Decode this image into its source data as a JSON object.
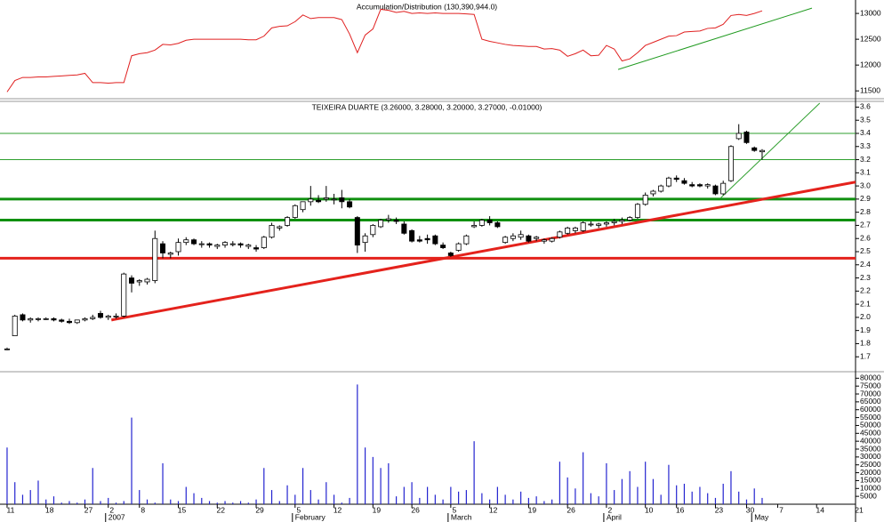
{
  "chart_data": [
    {
      "type": "line",
      "title": "Accumulation/Distribution (130,390,944.0)",
      "color": "#e02020",
      "ylim": [
        11400,
        13260
      ],
      "yticks": [
        11500,
        12000,
        12500,
        13000
      ],
      "values": [
        11480,
        11700,
        11760,
        11760,
        11770,
        11770,
        11780,
        11790,
        11800,
        11810,
        11840,
        11660,
        11660,
        11650,
        11660,
        11660,
        12180,
        12220,
        12240,
        12290,
        12400,
        12390,
        12420,
        12480,
        12500,
        12500,
        12500,
        12500,
        12500,
        12500,
        12500,
        12490,
        12490,
        12560,
        12720,
        12750,
        12760,
        12840,
        12970,
        12900,
        12920,
        12920,
        12920,
        12880,
        12600,
        12240,
        12580,
        12700,
        13080,
        13060,
        13020,
        13040,
        13000,
        13010,
        13000,
        13010,
        13000,
        13000,
        13000,
        12990,
        12980,
        12500,
        12460,
        12430,
        12400,
        12380,
        12370,
        12360,
        12360,
        12310,
        12320,
        12290,
        12170,
        12220,
        12290,
        12180,
        12190,
        12380,
        12310,
        12080,
        12120,
        12240,
        12380,
        12440,
        12500,
        12560,
        12570,
        12640,
        12650,
        12660,
        12710,
        12720,
        12790,
        12960,
        12980,
        12960,
        13000,
        13050
      ],
      "trendlines": [
        {
          "x": [
            78.5,
            103.4
          ],
          "y": [
            11914,
            13103
          ],
          "color": "#1f9a1f",
          "thick": false
        }
      ]
    },
    {
      "type": "candlestick",
      "title": "TEIXEIRA DUARTE (3.26000, 3.28000, 3.20000, 3.27000, -0.01000)",
      "ylim": [
        1.6,
        3.63
      ],
      "yticks": [
        1.7,
        1.8,
        1.9,
        {
          "value": 2,
          "label": "2.0"
        },
        2.1,
        2.2,
        2.3,
        2.4,
        2.5,
        2.6,
        2.7,
        2.8,
        2.9,
        {
          "value": 3,
          "label": "3.0"
        },
        3.1,
        3.2,
        3.3,
        3.4,
        3.5,
        3.6
      ],
      "up_color": "#ffffff",
      "down_color": "#000000",
      "open": [
        1.76,
        1.86,
        2.02,
        1.98,
        1.99,
        1.99,
        1.99,
        1.98,
        1.97,
        1.96,
        1.98,
        1.99,
        2.03,
        2.0,
        2.01,
        2.01,
        2.3,
        2.27,
        2.27,
        2.28,
        2.56,
        2.48,
        2.5,
        2.57,
        2.59,
        2.56,
        2.56,
        2.54,
        2.55,
        2.56,
        2.56,
        2.54,
        2.53,
        2.53,
        2.61,
        2.68,
        2.7,
        2.76,
        2.82,
        2.88,
        2.89,
        2.9,
        2.9,
        2.91,
        2.88,
        2.76,
        2.57,
        2.63,
        2.69,
        2.74,
        2.74,
        2.71,
        2.66,
        2.59,
        2.6,
        2.62,
        2.55,
        2.49,
        2.51,
        2.56,
        2.69,
        2.7,
        2.74,
        2.72,
        2.57,
        2.6,
        2.61,
        2.62,
        2.6,
        2.58,
        2.58,
        2.61,
        2.64,
        2.66,
        2.66,
        2.71,
        2.7,
        2.71,
        2.72,
        2.73,
        2.74,
        2.76,
        2.86,
        2.94,
        2.96,
        3.0,
        3.06,
        3.04,
        3.01,
        3.01,
        3.0,
        3.0,
        2.94,
        3.04,
        3.36,
        3.41,
        3.29,
        3.26
      ],
      "high": [
        1.77,
        2.02,
        2.03,
        2.0,
        2.0,
        2.0,
        2.0,
        1.99,
        1.99,
        1.98,
        2.0,
        2.02,
        2.05,
        2.02,
        2.03,
        2.34,
        2.32,
        2.29,
        2.3,
        2.66,
        2.58,
        2.5,
        2.6,
        2.61,
        2.6,
        2.58,
        2.57,
        2.56,
        2.58,
        2.58,
        2.57,
        2.56,
        2.55,
        2.62,
        2.72,
        2.7,
        2.77,
        2.86,
        2.88,
        3.0,
        2.93,
        3.0,
        2.94,
        2.97,
        2.9,
        2.77,
        2.64,
        2.71,
        2.75,
        2.78,
        2.76,
        2.73,
        2.67,
        2.62,
        2.63,
        2.63,
        2.57,
        2.5,
        2.57,
        2.63,
        2.73,
        2.75,
        2.77,
        2.73,
        2.62,
        2.64,
        2.66,
        2.63,
        2.62,
        2.6,
        2.61,
        2.66,
        2.69,
        2.69,
        2.73,
        2.73,
        2.72,
        2.73,
        2.75,
        2.76,
        2.77,
        2.87,
        2.95,
        2.97,
        3.01,
        3.07,
        3.08,
        3.06,
        3.03,
        3.02,
        3.02,
        3.01,
        3.04,
        3.31,
        3.47,
        3.42,
        3.3,
        3.28
      ],
      "low": [
        1.75,
        1.86,
        1.97,
        1.96,
        1.97,
        1.98,
        1.97,
        1.96,
        1.95,
        1.95,
        1.97,
        1.98,
        1.99,
        1.98,
        1.99,
        2.0,
        2.19,
        2.24,
        2.25,
        2.26,
        2.45,
        2.45,
        2.47,
        2.55,
        2.55,
        2.53,
        2.53,
        2.52,
        2.53,
        2.54,
        2.53,
        2.52,
        2.5,
        2.52,
        2.6,
        2.66,
        2.69,
        2.75,
        2.8,
        2.85,
        2.87,
        2.88,
        2.86,
        2.83,
        2.83,
        2.49,
        2.5,
        2.61,
        2.68,
        2.72,
        2.71,
        2.63,
        2.57,
        2.57,
        2.56,
        2.55,
        2.52,
        2.46,
        2.5,
        2.55,
        2.68,
        2.69,
        2.7,
        2.68,
        2.56,
        2.58,
        2.59,
        2.57,
        2.58,
        2.56,
        2.57,
        2.6,
        2.63,
        2.64,
        2.65,
        2.69,
        2.68,
        2.69,
        2.7,
        2.71,
        2.73,
        2.75,
        2.85,
        2.92,
        2.95,
        2.99,
        3.03,
        3.01,
        2.99,
        2.99,
        2.98,
        2.93,
        2.93,
        3.03,
        3.35,
        3.32,
        3.26,
        3.2
      ],
      "close": [
        1.76,
        2.01,
        1.98,
        1.99,
        1.99,
        1.99,
        1.98,
        1.97,
        1.96,
        1.98,
        1.99,
        2.0,
        2.0,
        2.01,
        2.01,
        2.33,
        2.26,
        2.28,
        2.29,
        2.6,
        2.49,
        2.49,
        2.57,
        2.59,
        2.56,
        2.56,
        2.55,
        2.55,
        2.57,
        2.56,
        2.55,
        2.55,
        2.52,
        2.61,
        2.7,
        2.69,
        2.76,
        2.85,
        2.88,
        2.9,
        2.88,
        2.91,
        2.9,
        2.88,
        2.84,
        2.55,
        2.62,
        2.7,
        2.74,
        2.75,
        2.73,
        2.64,
        2.58,
        2.58,
        2.59,
        2.56,
        2.53,
        2.47,
        2.56,
        2.62,
        2.7,
        2.74,
        2.72,
        2.69,
        2.61,
        2.62,
        2.63,
        2.58,
        2.61,
        2.59,
        2.6,
        2.65,
        2.68,
        2.68,
        2.72,
        2.71,
        2.71,
        2.72,
        2.73,
        2.74,
        2.76,
        2.86,
        2.93,
        2.96,
        3.0,
        3.06,
        3.05,
        3.02,
        3.0,
        3.0,
        3.01,
        2.94,
        3.02,
        3.3,
        3.4,
        3.33,
        3.27,
        3.27
      ],
      "hlines": [
        {
          "value": 3.4,
          "color": "#2f9f2f",
          "thick": false
        },
        {
          "value": 3.2,
          "color": "#2f9f2f",
          "thick": false
        },
        {
          "value": 2.9,
          "color": "#109010",
          "thick": true
        },
        {
          "value": 2.74,
          "color": "#109010",
          "thick": true
        },
        {
          "value": 2.45,
          "color": "#e4221c",
          "thick": true
        }
      ],
      "trendlines": [
        {
          "x": [
            13.4,
            109
          ],
          "y": [
            1.98,
            3.03
          ],
          "color": "#e4221c",
          "thick": true
        },
        {
          "x": [
            91.7,
            104.4
          ],
          "y": [
            2.91,
            3.63
          ],
          "color": "#2f9f2f",
          "thick": false
        }
      ]
    },
    {
      "type": "bar",
      "color": "#2424d0",
      "ylim": [
        0,
        83000
      ],
      "yticks": [
        5000,
        10000,
        15000,
        20000,
        25000,
        30000,
        35000,
        40000,
        45000,
        50000,
        55000,
        60000,
        65000,
        70000,
        75000,
        80000
      ],
      "values": [
        36000,
        14000,
        6000,
        9000,
        15000,
        3000,
        5000,
        1000,
        2000,
        1000,
        3000,
        23000,
        2000,
        4000,
        1000,
        2000,
        55000,
        9000,
        3000,
        1000,
        26000,
        3000,
        2000,
        11000,
        7000,
        4000,
        2000,
        1000,
        2000,
        1000,
        2000,
        1000,
        3000,
        23000,
        9000,
        2000,
        12000,
        6000,
        23000,
        9000,
        3000,
        14000,
        6000,
        1000,
        4000,
        76000,
        36000,
        30000,
        23000,
        26000,
        5000,
        11000,
        14000,
        4000,
        11000,
        6000,
        3000,
        11000,
        8000,
        9000,
        40000,
        7000,
        3000,
        11000,
        6000,
        3000,
        8000,
        4000,
        5000,
        2000,
        3000,
        27000,
        17000,
        10000,
        33000,
        7000,
        5000,
        26000,
        9000,
        16000,
        21000,
        11000,
        27000,
        16000,
        6000,
        25000,
        12000,
        13000,
        8000,
        11000,
        7000,
        4000,
        13000,
        21000,
        8000,
        3000,
        10000,
        4000
      ],
      "xlim": [
        -0.91,
        109
      ],
      "xticks": [
        {
          "value": 0,
          "label": "11"
        },
        {
          "value": 5,
          "label": "18"
        },
        {
          "value": 10,
          "label": "27"
        },
        {
          "value": 13,
          "label": "2"
        },
        {
          "value": 17,
          "label": "8"
        },
        {
          "value": 22,
          "label": "15"
        },
        {
          "value": 27,
          "label": "22"
        },
        {
          "value": 32,
          "label": "29"
        },
        {
          "value": 37,
          "label": "5"
        },
        {
          "value": 42,
          "label": "12"
        },
        {
          "value": 47,
          "label": "19"
        },
        {
          "value": 52,
          "label": "26"
        },
        {
          "value": 57,
          "label": "5"
        },
        {
          "value": 62,
          "label": "12"
        },
        {
          "value": 67,
          "label": "19"
        },
        {
          "value": 72,
          "label": "26"
        },
        {
          "value": 77,
          "label": "2"
        },
        {
          "value": 82,
          "label": "10"
        },
        {
          "value": 86,
          "label": "16"
        },
        {
          "value": 91,
          "label": "23"
        },
        {
          "value": 95,
          "label": "30"
        },
        {
          "value": 99,
          "label": "7"
        },
        {
          "value": 104,
          "label": "14"
        },
        {
          "value": 109,
          "label": "21"
        }
      ],
      "month_labels": [
        {
          "value": 13,
          "label": "2007"
        },
        {
          "value": 37,
          "label": "February"
        },
        {
          "value": 57,
          "label": "March"
        },
        {
          "value": 77,
          "label": "April"
        },
        {
          "value": 96,
          "label": "May"
        }
      ]
    }
  ]
}
